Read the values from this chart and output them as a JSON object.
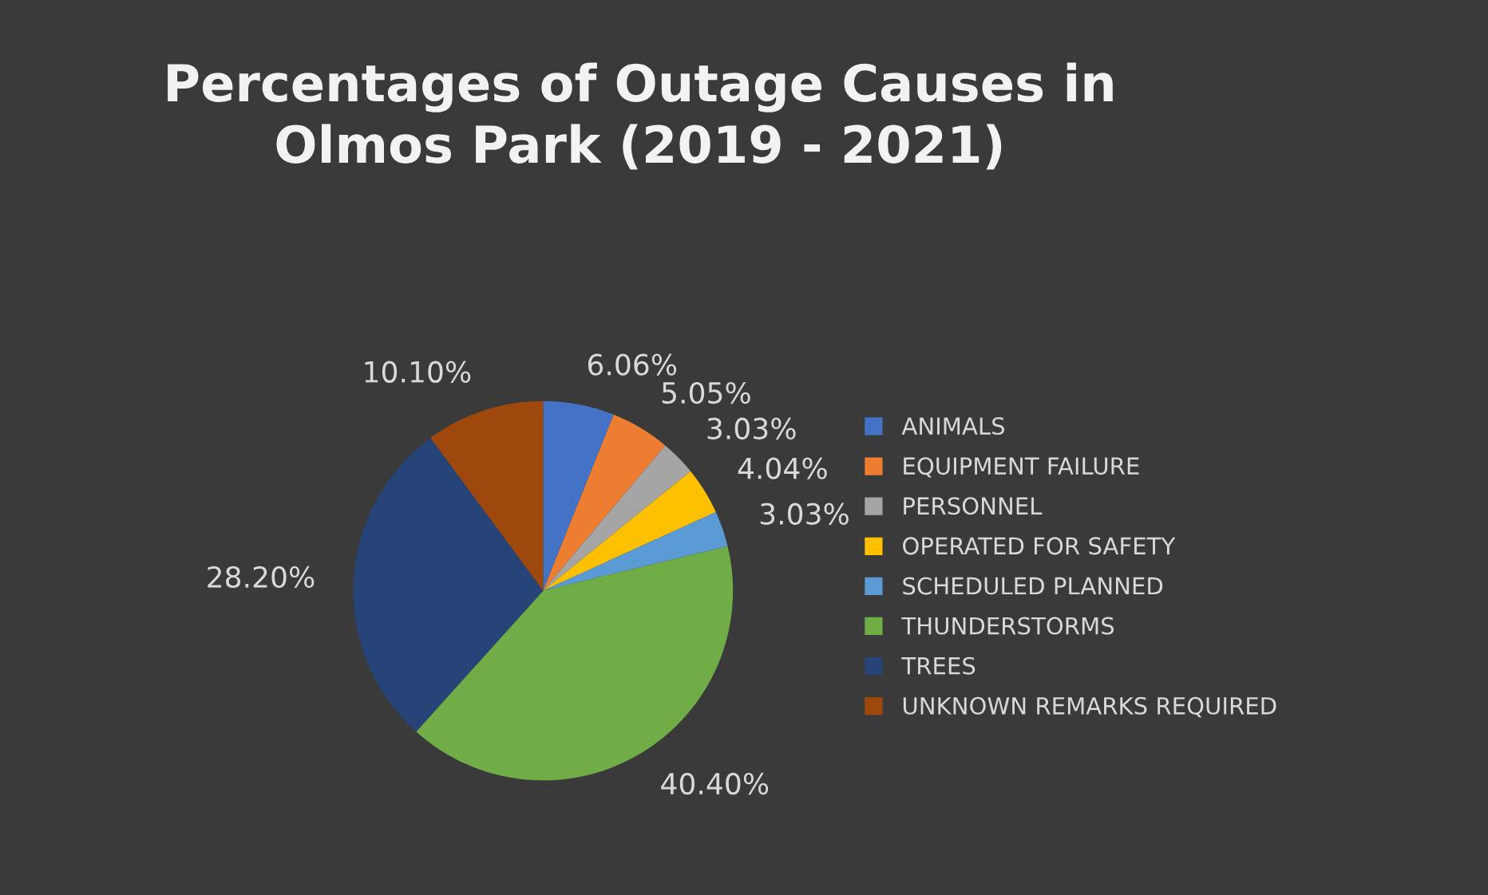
{
  "chart_data": {
    "type": "pie",
    "title": "Percentages of Outage Causes in\nOlmos Park (2019 - 2021)",
    "categories": [
      "ANIMALS",
      "EQUIPMENT FAILURE",
      "PERSONNEL",
      "OPERATED FOR SAFETY",
      "SCHEDULED PLANNED",
      "THUNDERSTORMS",
      "TREES",
      "UNKNOWN REMARKS REQUIRED"
    ],
    "values": [
      6.06,
      5.05,
      3.03,
      4.04,
      3.03,
      40.4,
      28.2,
      10.1
    ],
    "value_labels": [
      "6.06%",
      "5.05%",
      "3.03%",
      "4.04%",
      "3.03%",
      "40.40%",
      "28.20%",
      "10.10%"
    ],
    "colors": [
      "#4472c4",
      "#ed7d31",
      "#a5a5a5",
      "#ffc000",
      "#5b9bd5",
      "#70ad47",
      "#264478",
      "#9e480e"
    ],
    "legend": "right"
  }
}
